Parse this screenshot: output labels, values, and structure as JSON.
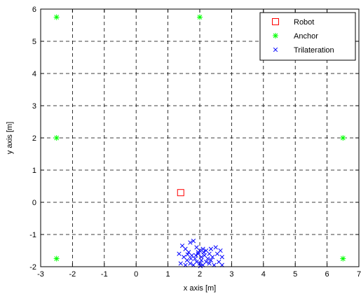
{
  "chart_data": {
    "type": "scatter",
    "xlabel": "x axis [m]",
    "ylabel": "y axis [m]",
    "xlim": [
      -3,
      7
    ],
    "ylim": [
      -2,
      6
    ],
    "x_ticks": [
      "-3",
      "-2",
      "-1",
      "0",
      "1",
      "2",
      "3",
      "4",
      "5",
      "6",
      "7"
    ],
    "y_ticks": [
      "-2",
      "-1",
      "0",
      "1",
      "2",
      "3",
      "4",
      "5",
      "6"
    ],
    "grid": true,
    "legend_position": "top-right",
    "series": [
      {
        "name": "Robot",
        "marker": "square",
        "color": "#ff0000",
        "points": [
          [
            1.4,
            0.3
          ]
        ]
      },
      {
        "name": "Anchor",
        "marker": "asterisk",
        "color": "#00ff00",
        "points": [
          [
            -2.5,
            5.75
          ],
          [
            2.0,
            5.75
          ],
          [
            -2.5,
            2.0
          ],
          [
            6.5,
            2.0
          ],
          [
            -2.5,
            -1.75
          ],
          [
            6.5,
            -1.75
          ]
        ]
      },
      {
        "name": "Trilateration",
        "marker": "x",
        "color": "#0000ff",
        "points": [
          [
            1.45,
            -1.35
          ],
          [
            1.55,
            -1.45
          ],
          [
            1.7,
            -1.25
          ],
          [
            1.8,
            -1.2
          ],
          [
            1.65,
            -1.55
          ],
          [
            1.9,
            -1.4
          ],
          [
            2.0,
            -1.5
          ],
          [
            2.1,
            -1.45
          ],
          [
            2.2,
            -1.5
          ],
          [
            2.35,
            -1.45
          ],
          [
            2.5,
            -1.4
          ],
          [
            2.65,
            -1.5
          ],
          [
            1.35,
            -1.6
          ],
          [
            1.5,
            -1.7
          ],
          [
            1.6,
            -1.8
          ],
          [
            1.75,
            -1.65
          ],
          [
            1.85,
            -1.75
          ],
          [
            1.95,
            -1.6
          ],
          [
            2.05,
            -1.7
          ],
          [
            2.15,
            -1.65
          ],
          [
            2.25,
            -1.75
          ],
          [
            2.4,
            -1.7
          ],
          [
            2.55,
            -1.6
          ],
          [
            2.7,
            -1.7
          ],
          [
            1.4,
            -1.9
          ],
          [
            1.55,
            -1.95
          ],
          [
            1.7,
            -1.9
          ],
          [
            1.8,
            -1.95
          ],
          [
            1.9,
            -1.85
          ],
          [
            2.0,
            -1.9
          ],
          [
            2.1,
            -1.95
          ],
          [
            2.2,
            -1.85
          ],
          [
            2.3,
            -1.9
          ],
          [
            2.45,
            -1.95
          ],
          [
            2.6,
            -1.85
          ],
          [
            2.7,
            -1.95
          ],
          [
            1.95,
            -1.55
          ],
          [
            2.05,
            -1.8
          ],
          [
            2.12,
            -1.55
          ],
          [
            1.88,
            -1.65
          ],
          [
            2.3,
            -1.6
          ],
          [
            1.72,
            -1.75
          ],
          [
            2.02,
            -1.98
          ],
          [
            2.35,
            -1.8
          ],
          [
            1.62,
            -1.62
          ]
        ]
      }
    ]
  }
}
